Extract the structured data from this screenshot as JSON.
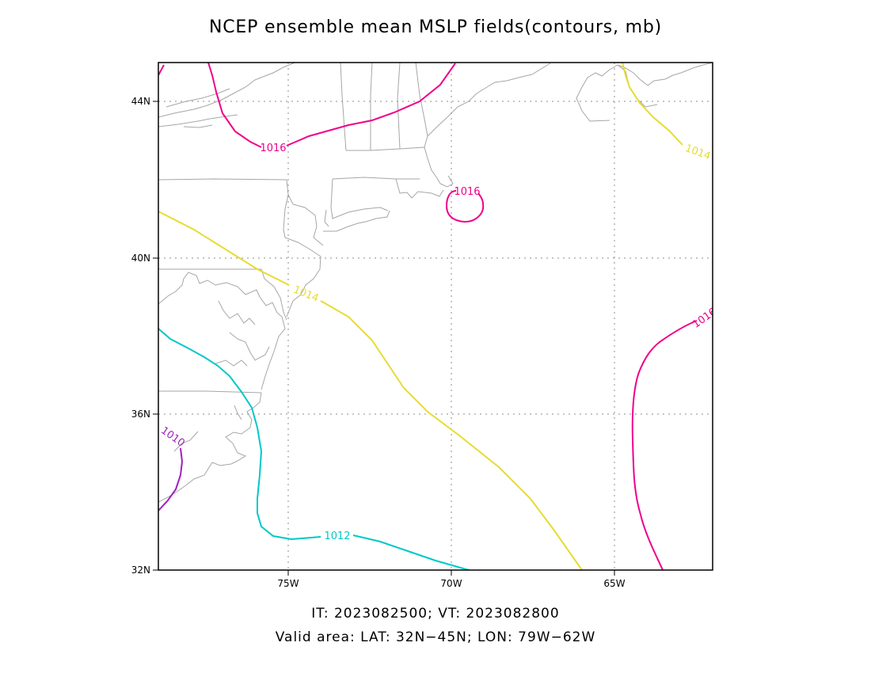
{
  "title": "NCEP ensemble mean MSLP fields(contours, mb)",
  "footer": {
    "times": "IT: 2023082500; VT: 2023082800",
    "area": "Valid area: LAT: 32N−45N; LON: 79W−62W"
  },
  "map": {
    "lon_range": [
      -79,
      -62
    ],
    "lat_range": [
      32,
      45
    ],
    "lon_ticks": [
      {
        "lon": -75,
        "label": "75W"
      },
      {
        "lon": -70,
        "label": "70W"
      },
      {
        "lon": -65,
        "label": "65W"
      }
    ],
    "lat_ticks": [
      {
        "lat": 32,
        "label": "32N"
      },
      {
        "lat": 36,
        "label": "36N"
      },
      {
        "lat": 40,
        "label": "40N"
      },
      {
        "lat": 44,
        "label": "44N"
      }
    ],
    "grid": "dotted"
  },
  "contours": [
    {
      "value": 1010,
      "label": "1010",
      "color": "#a020c0"
    },
    {
      "value": 1012,
      "label": "1012",
      "color": "#00c8c8"
    },
    {
      "value": 1014,
      "label": "1014",
      "color": "#e6dc32"
    },
    {
      "value": 1016,
      "label": "1016",
      "color": "#f0008c"
    }
  ],
  "contour_labels": {
    "c1016_north": "1016",
    "c1016_closed": "1016",
    "c1016_east": "1016",
    "c1014_west": "1014",
    "c1014_ne": "1014",
    "c1012": "1012",
    "c1010": "1010"
  }
}
